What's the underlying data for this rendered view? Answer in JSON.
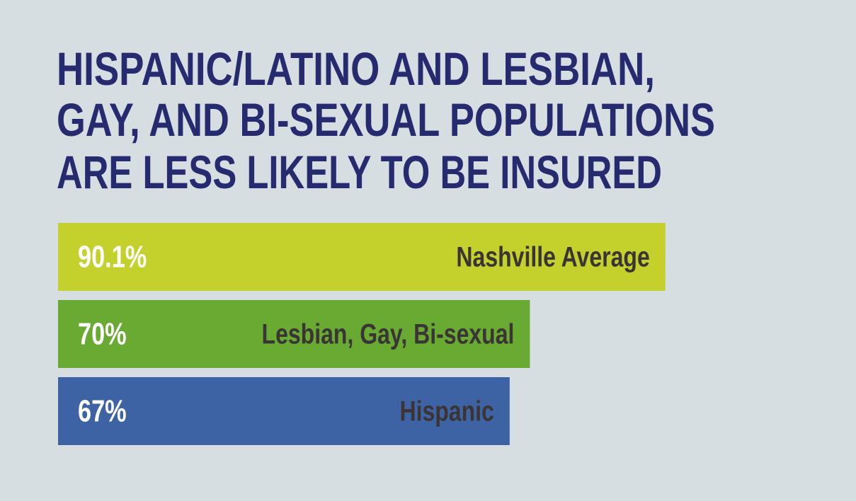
{
  "chart_data": {
    "type": "hbar",
    "title": [
      "HISPANIC/LATINO AND LESBIAN,",
      "GAY, AND BI-SEXUAL POPULATIONS",
      "ARE LESS LIKELY TO BE INSURED"
    ],
    "categories": [
      "Nashville Average",
      "Lesbian, Gay, Bi-sexual",
      "Hispanic"
    ],
    "values": [
      90.1,
      70,
      67
    ],
    "value_labels": [
      "90.1%",
      "70%",
      "67%"
    ],
    "colors": [
      "#c4d12c",
      "#69aa33",
      "#3d63a5"
    ],
    "xlim": [
      0,
      100
    ]
  }
}
